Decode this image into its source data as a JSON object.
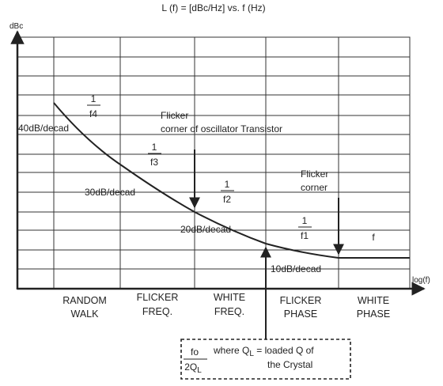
{
  "title": "L (f) = [dBc/Hz] vs. f (Hz)",
  "y_axis_label": "dBc",
  "x_axis_label": "log(f)",
  "regions": [
    {
      "line1": "RANDOM",
      "line2": "WALK"
    },
    {
      "line1": "FLICKER",
      "line2": "FREQ."
    },
    {
      "line1": "WHITE",
      "line2": "FREQ."
    },
    {
      "line1": "FLICKER",
      "line2": "PHASE"
    },
    {
      "line1": "WHITE",
      "line2": "PHASE"
    }
  ],
  "segments": [
    {
      "fraction_num": "1",
      "fraction_den": "f4",
      "slope_label": "40dB/decad"
    },
    {
      "fraction_num": "1",
      "fraction_den": "f3",
      "slope_label": "30dB/decad"
    },
    {
      "fraction_num": "1",
      "fraction_den": "f2",
      "slope_label": "20dB/decad"
    },
    {
      "fraction_num": "1",
      "fraction_den": "f1",
      "slope_label": "10dB/decad"
    },
    {
      "fraction_den": "f"
    }
  ],
  "annotations": {
    "flicker_transistor_line1": "Flicker",
    "flicker_transistor_line2": "corner of oscillator Transistor",
    "flicker_corner_line1": "Flicker",
    "flicker_corner_line2": "corner"
  },
  "loaded_q_box": {
    "fraction_num": "fo",
    "fraction_den_main": "2Q",
    "fraction_den_sub": "L",
    "line1_pre": "where Q",
    "line1_sub": "L",
    "line1_post": " = loaded Q of",
    "line2": "the Crystal"
  },
  "colors": {
    "ink": "#222222",
    "grid": "#333333"
  }
}
